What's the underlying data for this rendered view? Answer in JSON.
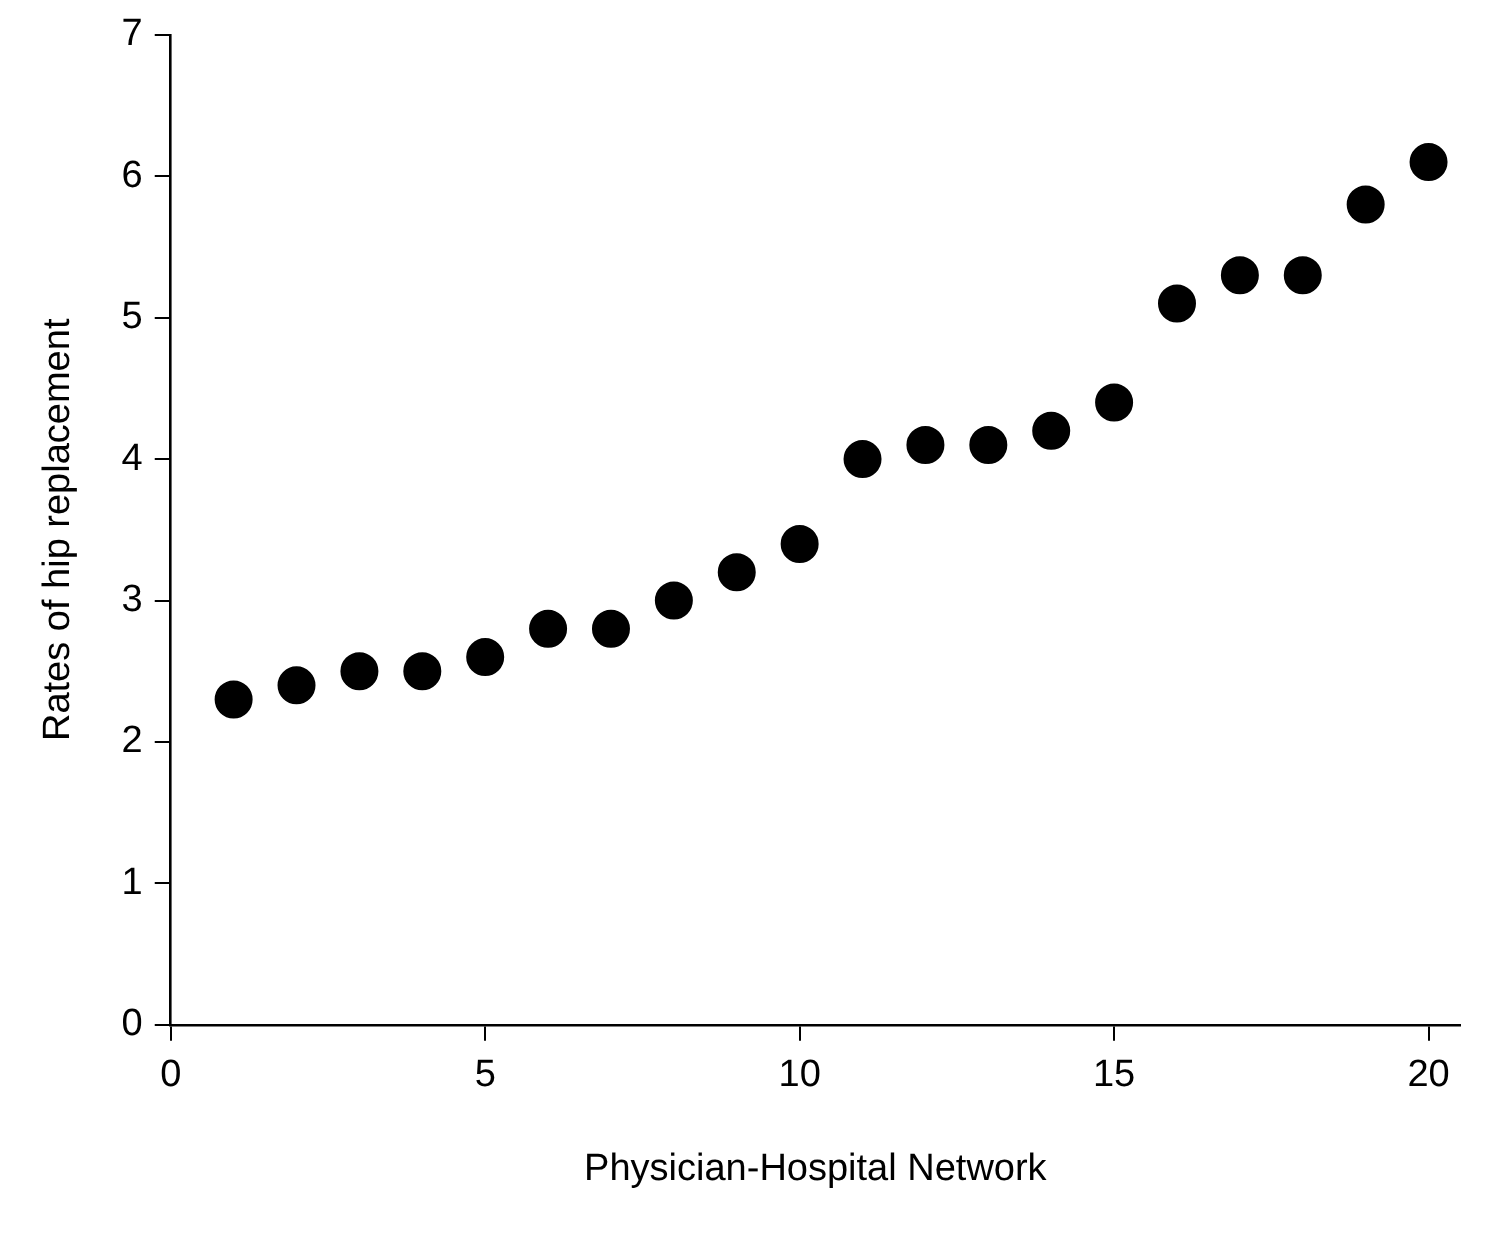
{
  "chart_data": {
    "type": "scatter",
    "xlabel": "Physician-Hospital Network",
    "ylabel": "Rates of hip replacement",
    "x": [
      1,
      2,
      3,
      4,
      5,
      6,
      7,
      8,
      9,
      10,
      11,
      12,
      13,
      14,
      15,
      16,
      17,
      18,
      19,
      20
    ],
    "series": [
      {
        "color": "#000000",
        "values": [
          2.3,
          2.4,
          2.5,
          2.5,
          2.6,
          2.8,
          2.8,
          3.0,
          3.2,
          3.4,
          4.0,
          4.1,
          4.1,
          4.2,
          4.4,
          5.1,
          5.3,
          5.3,
          5.8,
          6.1
        ]
      }
    ],
    "xlim": [
      0,
      20.5
    ],
    "xticks": [
      0,
      5,
      10,
      15,
      20
    ],
    "ylim": [
      0,
      7
    ],
    "yticks": [
      0,
      1,
      2,
      3,
      4,
      5,
      6,
      7
    ],
    "grid": false,
    "legend": false,
    "marker": "circle"
  }
}
